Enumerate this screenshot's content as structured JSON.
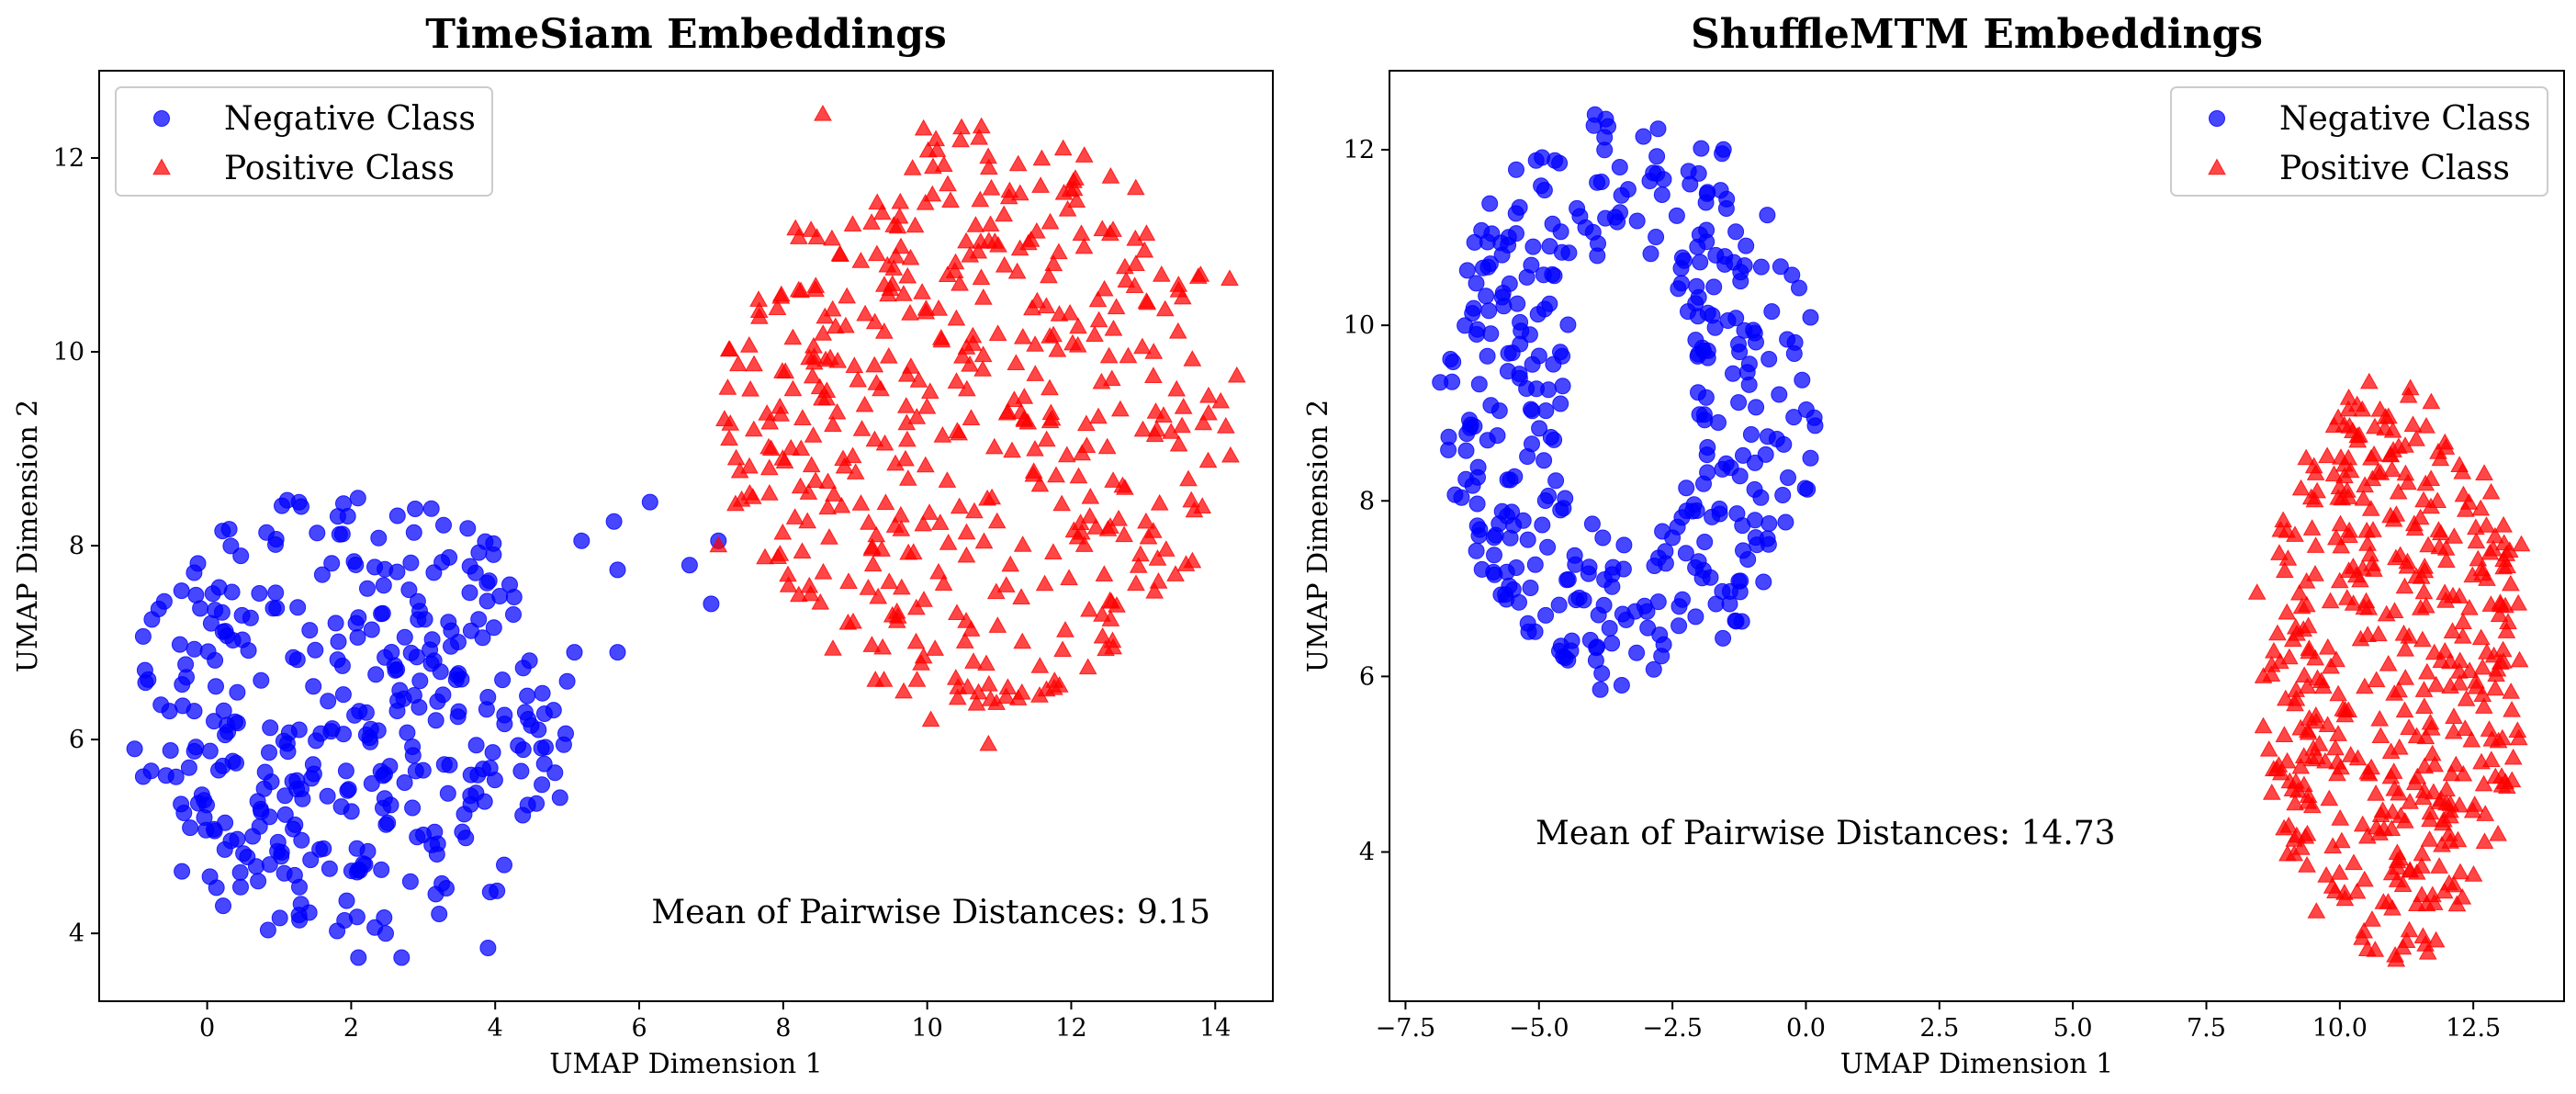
{
  "chart_data": [
    {
      "type": "scatter",
      "title": "TimeSiam Embeddings",
      "xlabel": "UMAP Dimension 1",
      "ylabel": "UMAP Dimension 2",
      "xlim": [
        -1.5,
        14.8
      ],
      "ylim": [
        3.3,
        12.9
      ],
      "xticks": [
        0,
        2,
        4,
        6,
        8,
        10,
        12,
        14
      ],
      "xtick_labels": [
        "0",
        "2",
        "4",
        "6",
        "8",
        "10",
        "12",
        "14"
      ],
      "yticks": [
        4,
        6,
        8,
        10,
        12
      ],
      "ytick_labels": [
        "4",
        "6",
        "8",
        "10",
        "12"
      ],
      "grid": false,
      "legend_position": "top-left",
      "annotation": "Mean of Pairwise Distances: 9.15",
      "series": [
        {
          "name": "Negative Class",
          "marker": "circle",
          "color": "#0000ff",
          "cluster": {
            "center": [
              2.0,
              6.2
            ],
            "radius_x": 3.1,
            "radius_y": 2.4,
            "count": 360,
            "seed": 11
          },
          "points": [
            [
              5.0,
              6.6
            ],
            [
              5.1,
              6.9
            ],
            [
              5.7,
              6.9
            ],
            [
              5.2,
              8.05
            ],
            [
              5.65,
              8.25
            ],
            [
              5.7,
              7.75
            ],
            [
              6.15,
              8.45
            ],
            [
              6.7,
              7.8
            ],
            [
              7.1,
              8.05
            ],
            [
              7.0,
              7.4
            ],
            [
              4.6,
              6.1
            ],
            [
              4.9,
              5.4
            ],
            [
              3.9,
              3.85
            ],
            [
              2.1,
              3.75
            ],
            [
              2.7,
              3.75
            ]
          ]
        },
        {
          "name": "Positive Class",
          "marker": "triangle",
          "color": "#ff0000",
          "cluster": {
            "center": [
              10.7,
              9.35
            ],
            "radius_x": 3.55,
            "radius_y": 3.0,
            "count": 460,
            "seed": 29
          },
          "points": [
            [
              8.55,
              12.45
            ],
            [
              9.95,
              12.3
            ],
            [
              10.85,
              5.95
            ],
            [
              10.05,
              6.2
            ],
            [
              14.2,
              10.75
            ],
            [
              14.3,
              9.75
            ],
            [
              7.25,
              9.1
            ],
            [
              7.1,
              8.0
            ],
            [
              8.9,
              7.2
            ]
          ]
        }
      ]
    },
    {
      "type": "scatter",
      "title": "ShuffleMTM Embeddings",
      "xlabel": "UMAP Dimension 1",
      "ylabel": "UMAP Dimension 2",
      "xlim": [
        -7.8,
        14.2
      ],
      "ylim": [
        2.3,
        12.9
      ],
      "xticks": [
        -7.5,
        -5.0,
        -2.5,
        0.0,
        2.5,
        5.0,
        7.5,
        10.0,
        12.5
      ],
      "xtick_labels": [
        "−7.5",
        "−5.0",
        "−2.5",
        "0.0",
        "2.5",
        "5.0",
        "7.5",
        "10.0",
        "12.5"
      ],
      "yticks": [
        4,
        6,
        8,
        10,
        12
      ],
      "ytick_labels": [
        "4",
        "6",
        "8",
        "10",
        "12"
      ],
      "grid": false,
      "legend_position": "top-right",
      "annotation": "Mean of Pairwise Distances: 14.73",
      "series": [
        {
          "name": "Negative Class",
          "marker": "circle",
          "color": "#0000ff",
          "ring": {
            "center": [
              -3.3,
              9.2
            ],
            "outer": [
              3.55,
              3.25
            ],
            "inner": [
              1.25,
              1.7
            ],
            "count": 380,
            "seed": 47
          },
          "points": [
            [
              -3.95,
              12.4
            ],
            [
              -3.75,
              12.35
            ],
            [
              -3.85,
              5.85
            ],
            [
              -3.45,
              5.9
            ],
            [
              -6.85,
              9.35
            ]
          ]
        },
        {
          "name": "Positive Class",
          "marker": "triangle",
          "color": "#ff0000",
          "cluster": {
            "center": [
              10.95,
              6.05
            ],
            "radius_x": 2.5,
            "radius_y": 3.3,
            "count": 440,
            "seed": 83
          },
          "points": [
            [
              10.55,
              9.35
            ],
            [
              11.65,
              2.85
            ],
            [
              13.4,
              7.5
            ],
            [
              8.45,
              6.95
            ]
          ]
        }
      ]
    }
  ]
}
